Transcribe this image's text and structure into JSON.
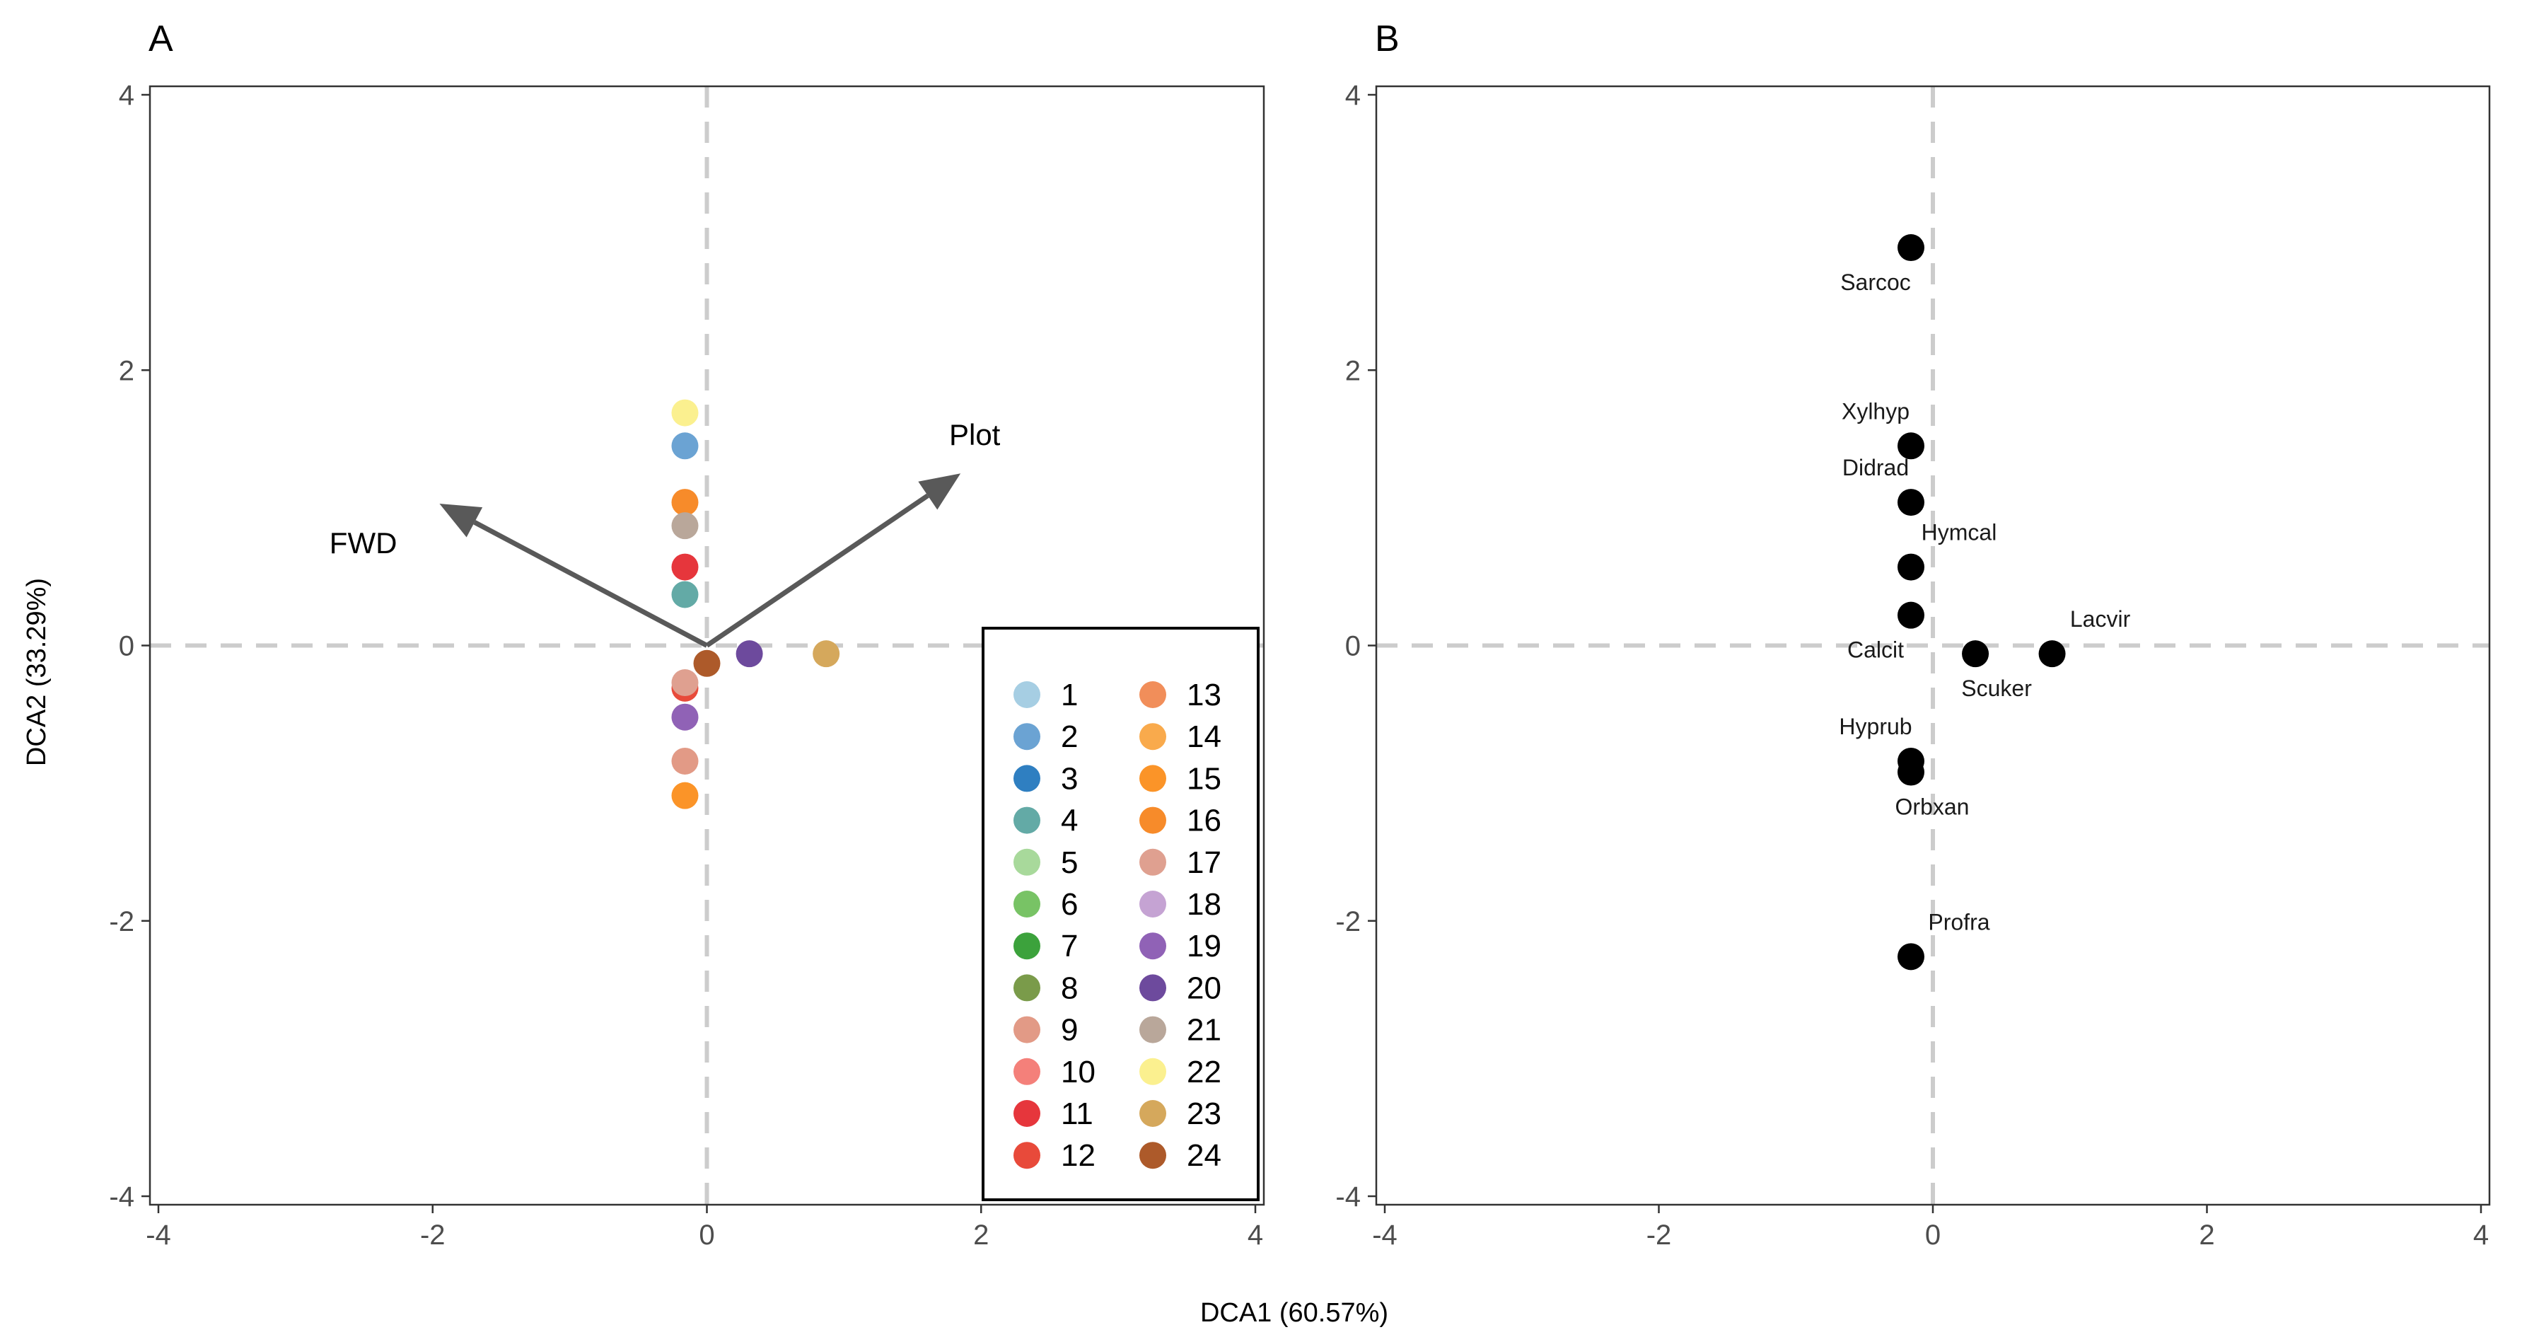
{
  "figure": {
    "shared_xlabel": "DCA1 (60.57%)",
    "shared_ylabel": "DCA2 (33.29%)"
  },
  "chart_data": [
    {
      "type": "scatter",
      "panel": "A",
      "title": "A",
      "xlim": [
        -4,
        4
      ],
      "ylim": [
        -4,
        4
      ],
      "xticks": [
        -4,
        -2,
        0,
        2,
        4
      ],
      "yticks": [
        -4,
        -2,
        0,
        2,
        4
      ],
      "xtick_labels": [
        "-4",
        "-2",
        "0",
        "2",
        "4"
      ],
      "ytick_labels": [
        "-4",
        "-2",
        "0",
        "2",
        "4"
      ],
      "zero_lines": true,
      "legend_position": "bottom-right",
      "vectors": [
        {
          "name": "FWD",
          "x": -1.95,
          "y": 1.03
        },
        {
          "name": "Plot",
          "x": 1.85,
          "y": 1.25
        }
      ],
      "series": [
        {
          "name": "1",
          "color": "#a6cee3",
          "x": [],
          "y": []
        },
        {
          "name": "2",
          "color": "#6ba3d3",
          "x": [
            -0.16
          ],
          "y": [
            1.45
          ]
        },
        {
          "name": "3",
          "color": "#2f7fc1",
          "x": [],
          "y": []
        },
        {
          "name": "4",
          "color": "#63aaa6",
          "x": [
            -0.16
          ],
          "y": [
            0.37
          ]
        },
        {
          "name": "5",
          "color": "#a8d99b",
          "x": [],
          "y": []
        },
        {
          "name": "6",
          "color": "#78c365",
          "x": [],
          "y": []
        },
        {
          "name": "7",
          "color": "#3ca23c",
          "x": [],
          "y": []
        },
        {
          "name": "8",
          "color": "#7a9b4a",
          "x": [],
          "y": []
        },
        {
          "name": "9",
          "color": "#e29a86",
          "x": [
            -0.16
          ],
          "y": [
            -0.84
          ]
        },
        {
          "name": "10",
          "color": "#f4807a",
          "x": [],
          "y": []
        },
        {
          "name": "11",
          "color": "#e6363c",
          "x": [
            -0.16
          ],
          "y": [
            0.57
          ]
        },
        {
          "name": "12",
          "color": "#e84a3a",
          "x": [
            -0.16
          ],
          "y": [
            -0.31
          ]
        },
        {
          "name": "13",
          "color": "#f18e5a",
          "x": [],
          "y": []
        },
        {
          "name": "14",
          "color": "#f9aa4c",
          "x": [],
          "y": []
        },
        {
          "name": "15",
          "color": "#fb9428",
          "x": [
            -0.16
          ],
          "y": [
            -1.09
          ]
        },
        {
          "name": "16",
          "color": "#f78b2a",
          "x": [
            -0.16
          ],
          "y": [
            1.04
          ]
        },
        {
          "name": "17",
          "color": "#dfa090",
          "x": [
            -0.16
          ],
          "y": [
            -0.27
          ]
        },
        {
          "name": "18",
          "color": "#c5a3d3",
          "x": [],
          "y": []
        },
        {
          "name": "19",
          "color": "#9062b6",
          "x": [
            -0.16
          ],
          "y": [
            -0.52
          ]
        },
        {
          "name": "20",
          "color": "#6d4a9d",
          "x": [
            0.31
          ],
          "y": [
            -0.06
          ]
        },
        {
          "name": "21",
          "color": "#b9a79a",
          "x": [
            -0.16
          ],
          "y": [
            0.87
          ]
        },
        {
          "name": "22",
          "color": "#fbf08f",
          "x": [
            -0.16
          ],
          "y": [
            1.69
          ]
        },
        {
          "name": "23",
          "color": "#d5a85c",
          "x": [
            0.87
          ],
          "y": [
            -0.06
          ]
        },
        {
          "name": "24",
          "color": "#ad5a2a",
          "x": [
            0.0
          ],
          "y": [
            -0.13
          ]
        }
      ]
    },
    {
      "type": "scatter",
      "panel": "B",
      "title": "B",
      "xlim": [
        -4,
        4
      ],
      "ylim": [
        -4,
        4
      ],
      "xticks": [
        -4,
        -2,
        0,
        2,
        4
      ],
      "yticks": [
        -4,
        -2,
        0,
        2,
        4
      ],
      "xtick_labels": [
        "-4",
        "-2",
        "0",
        "2",
        "4"
      ],
      "ytick_labels": [
        "-4",
        "-2",
        "0",
        "2",
        "4"
      ],
      "zero_lines": true,
      "point_color": "#000000",
      "points": [
        {
          "label": "Sarcoc",
          "x": -0.16,
          "y": 2.89,
          "label_pos": "below-left"
        },
        {
          "label": "Xylhyp",
          "x": -0.16,
          "y": 1.45,
          "label_pos": "above-left"
        },
        {
          "label": "Didrad",
          "x": -0.16,
          "y": 1.04,
          "label_pos": "above-left"
        },
        {
          "label": "Hymcal",
          "x": -0.16,
          "y": 0.57,
          "label_pos": "above-right"
        },
        {
          "label": "Calcit",
          "x": -0.16,
          "y": 0.22,
          "label_pos": "below-left"
        },
        {
          "label": "Scuker",
          "x": 0.31,
          "y": -0.06,
          "label_pos": "below-right"
        },
        {
          "label": "Lacvir",
          "x": 0.87,
          "y": -0.06,
          "label_pos": "above-right"
        },
        {
          "label": "Hyprub",
          "x": -0.16,
          "y": -0.84,
          "label_pos": "above-left"
        },
        {
          "label": "Orbxan",
          "x": -0.16,
          "y": -0.92,
          "label_pos": "below-right"
        },
        {
          "label": "Profra",
          "x": -0.16,
          "y": -2.26,
          "label_pos": "above-right"
        }
      ]
    }
  ]
}
